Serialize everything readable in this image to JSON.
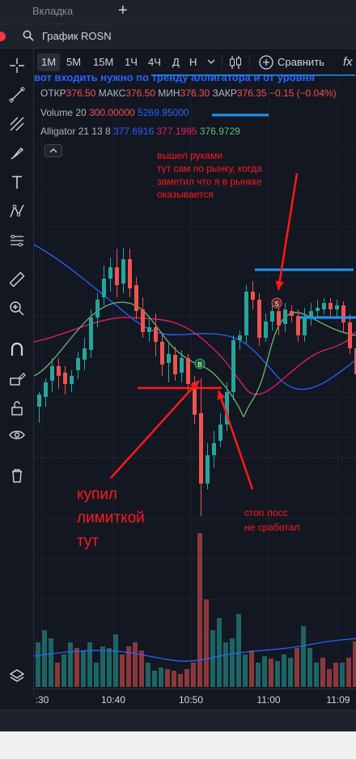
{
  "tab": {
    "label": "Вкладка",
    "add_label": "+"
  },
  "search": {
    "text": "График ROSN"
  },
  "timeframes": [
    {
      "label": "1М",
      "active": true
    },
    {
      "label": "5М",
      "active": false
    },
    {
      "label": "15М",
      "active": false
    },
    {
      "label": "1Ч",
      "active": false
    },
    {
      "label": "4Ч",
      "active": false
    },
    {
      "label": "Д",
      "active": false
    },
    {
      "label": "Н",
      "active": false
    }
  ],
  "toolbar": {
    "compare_label": "Сравнить",
    "fx_label": "fx"
  },
  "banner": "вот входить нужно по тренду аллигатора и от уровня",
  "legend": {
    "open_label": "ОТКР",
    "open": "376.50",
    "high_label": "МАКС",
    "high": "376.50",
    "low_label": "МИН",
    "low": "376.30",
    "close_label": "ЗАКР",
    "close": "376.35",
    "change": "−0.15 (−0.04%)",
    "volume_label": "Volume 20",
    "volume_ma": "300.00000",
    "volume": "5269.95000",
    "alligator_label": "Alligator 21 13 8",
    "jaw": "377.6916",
    "teeth": "377.1995",
    "lips": "376.9729"
  },
  "markers": {
    "buy": "B",
    "sell": "S"
  },
  "annotations": {
    "top": "вышел руками\nтут сам по рынку, когда\nзаметил что я в рынкке\nоказывается",
    "bought": "купил\nлимиткой\nтут",
    "stop": "стоп лосс\nне сработал"
  },
  "time_axis": [
    ":30",
    "10:40",
    "10:50",
    "11:00",
    "11:09"
  ],
  "colors": {
    "background": "#131722",
    "up": "#26a69a",
    "down": "#ef5350",
    "level": "#2196f3",
    "annotation": "#ff1a1a",
    "jaw": "#2962ff",
    "teeth": "#e91e63",
    "lips": "#66bb6a"
  },
  "icons": [
    "crosshair-icon",
    "trend-line-icon",
    "fib-icon",
    "brush-icon",
    "text-icon",
    "pattern-icon",
    "prediction-icon",
    "ruler-icon",
    "zoom-icon",
    "magnet-icon",
    "lock-pencil-icon",
    "unlock-icon",
    "eye-icon",
    "trash-icon",
    "layers-icon"
  ]
}
